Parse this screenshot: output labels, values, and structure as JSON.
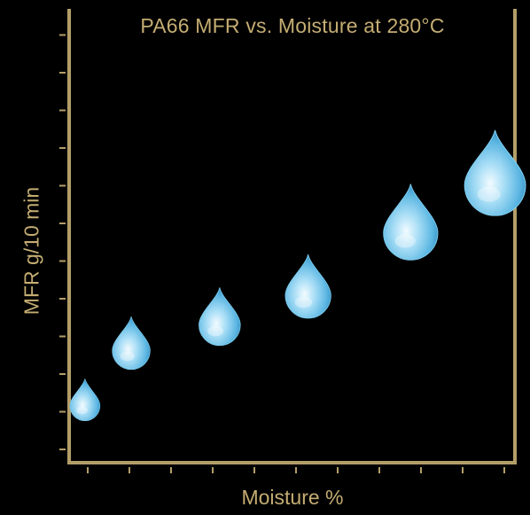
{
  "colors": {
    "background": "#000000",
    "axis": "#b39e68",
    "text": "#c4ad72",
    "drop_light": "#e6f8ff",
    "drop_mid": "#6fc6ec",
    "drop_dark": "#2a7fb0"
  },
  "marker_icon": "water-drop-icon",
  "chart_data": {
    "type": "scatter",
    "title": "PA66 MFR vs. Moisture at 280°C",
    "xlabel": "Moisture %",
    "ylabel": "MFR g/10 min",
    "xlim": [
      0,
      11
    ],
    "ylim": [
      0,
      12
    ],
    "x_tick_count": 11,
    "y_tick_count": 12,
    "tick_labels_shown": false,
    "grid": false,
    "legend": "none",
    "points": [
      {
        "x": 0.35,
        "y": 1.5
      },
      {
        "x": 1.5,
        "y": 3.0
      },
      {
        "x": 3.7,
        "y": 3.7
      },
      {
        "x": 5.9,
        "y": 4.5
      },
      {
        "x": 8.45,
        "y": 6.2
      },
      {
        "x": 10.55,
        "y": 7.5
      }
    ]
  }
}
